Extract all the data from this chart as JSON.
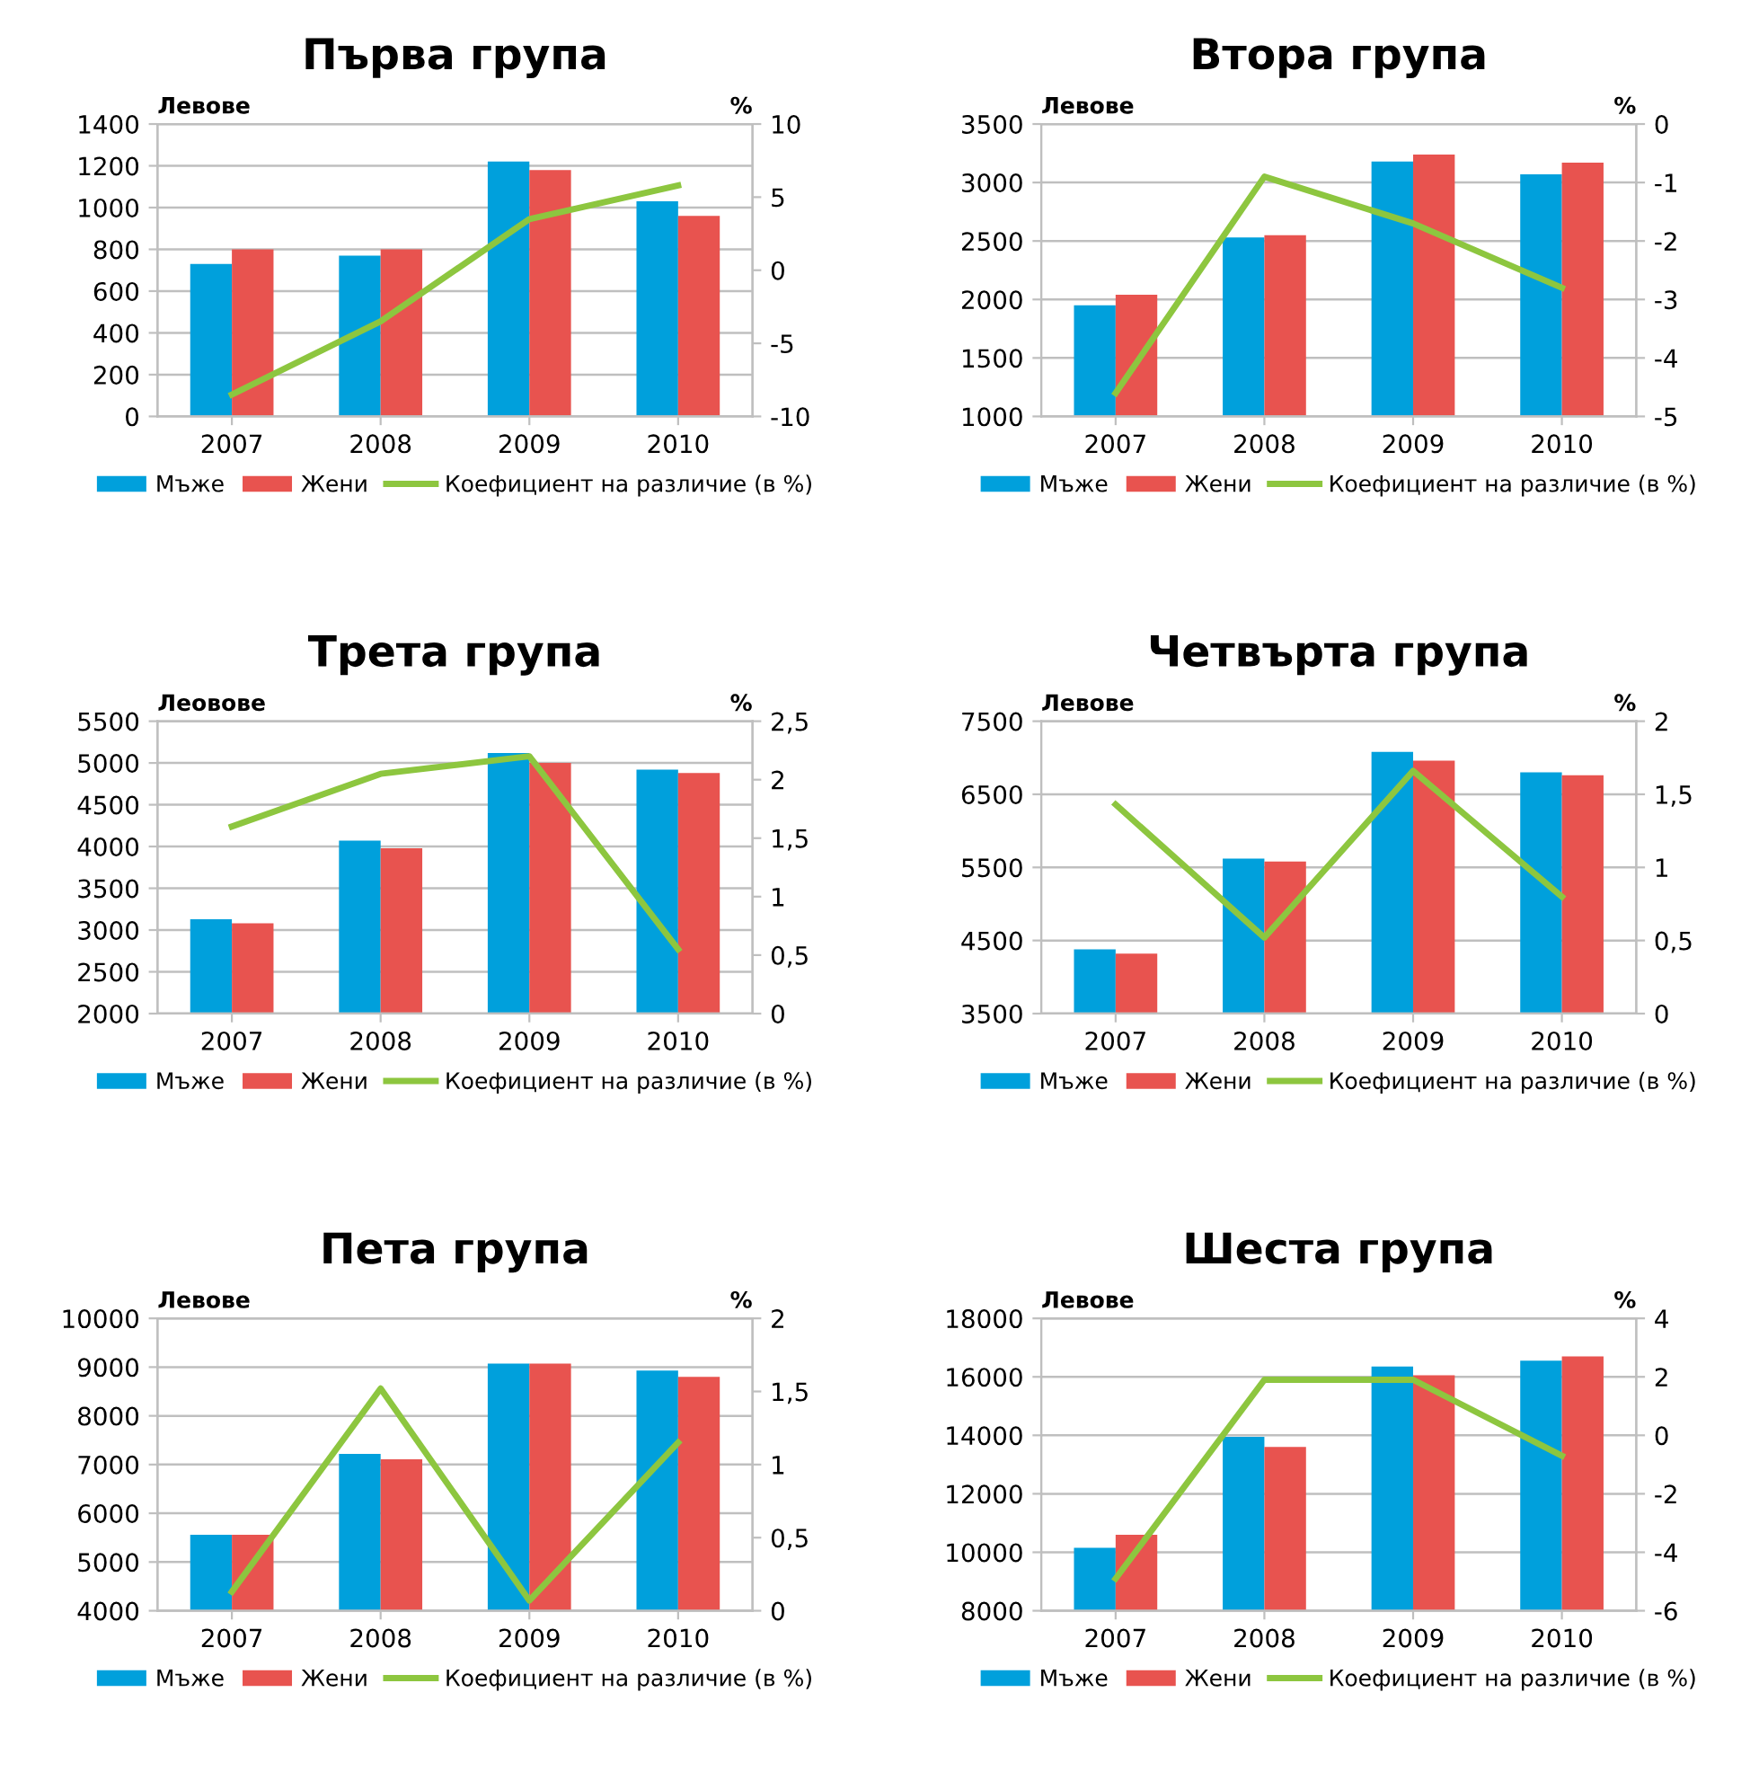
{
  "chart_data": [
    {
      "type": "bar",
      "title": "Първа група",
      "ylabel": "Левове",
      "y2label": "%",
      "categories": [
        "2007",
        "2008",
        "2009",
        "2010"
      ],
      "series": [
        {
          "name": "Мъже",
          "color": "#00a0dc",
          "values": [
            730,
            770,
            1220,
            1030
          ]
        },
        {
          "name": "Жени",
          "color": "#e8534f",
          "values": [
            800,
            800,
            1180,
            960
          ]
        },
        {
          "name": "Коефициент на различие (в %)",
          "type": "line",
          "axis": "y2",
          "color": "#8dc63f",
          "values": [
            -8.5,
            -3.5,
            3.5,
            5.8
          ]
        }
      ],
      "ylim": [
        0,
        1400
      ],
      "yticks": [
        0,
        200,
        400,
        600,
        800,
        1000,
        1200,
        1400
      ],
      "y2lim": [
        -10,
        10
      ],
      "y2ticks": [
        -10,
        -5,
        0,
        5,
        10
      ],
      "grid": "y",
      "legend": "bottom",
      "marker": "none",
      "line_style": "solid"
    },
    {
      "type": "bar",
      "title": "Втора група",
      "ylabel": "Левове",
      "y2label": "%",
      "categories": [
        "2007",
        "2008",
        "2009",
        "2010"
      ],
      "series": [
        {
          "name": "Мъже",
          "color": "#00a0dc",
          "values": [
            1950,
            2530,
            3180,
            3070
          ]
        },
        {
          "name": "Жени",
          "color": "#e8534f",
          "values": [
            2040,
            2550,
            3240,
            3170
          ]
        },
        {
          "name": "Коефициент на различие (в %)",
          "type": "line",
          "axis": "y2",
          "color": "#8dc63f",
          "values": [
            -4.6,
            -0.9,
            -1.7,
            -2.8
          ]
        }
      ],
      "ylim": [
        1000,
        3500
      ],
      "yticks": [
        1000,
        1500,
        2000,
        2500,
        3000,
        3500
      ],
      "y2lim": [
        -5,
        0
      ],
      "y2ticks": [
        -5,
        -4,
        -3,
        -2,
        -1,
        0
      ],
      "grid": "y",
      "legend": "bottom",
      "marker": "none",
      "line_style": "solid"
    },
    {
      "type": "bar",
      "title": "Трета група",
      "ylabel": "Леовове",
      "y2label": "%",
      "categories": [
        "2007",
        "2008",
        "2009",
        "2010"
      ],
      "series": [
        {
          "name": "Мъже",
          "color": "#00a0dc",
          "values": [
            3130,
            4070,
            5120,
            4920
          ]
        },
        {
          "name": "Жени",
          "color": "#e8534f",
          "values": [
            3080,
            3980,
            5000,
            4880
          ]
        },
        {
          "name": "Коефициент на различие (в %)",
          "type": "line",
          "axis": "y2",
          "color": "#8dc63f",
          "values": [
            1.6,
            2.05,
            2.2,
            0.55
          ]
        }
      ],
      "ylim": [
        2000,
        5500
      ],
      "yticks": [
        2000,
        2500,
        3000,
        3500,
        4000,
        4500,
        5000,
        5500
      ],
      "y2lim": [
        0,
        2.5
      ],
      "y2ticks": [
        0,
        {
          "value": 0.5,
          "label": "0,5"
        },
        1,
        {
          "value": 1.5,
          "label": "1,5"
        },
        2,
        {
          "value": 2.5,
          "label": "2,5"
        }
      ],
      "grid": "y",
      "legend": "bottom",
      "marker": "none",
      "line_style": "solid"
    },
    {
      "type": "bar",
      "title": "Четвърта група",
      "ylabel": "Левове",
      "y2label": "%",
      "categories": [
        "2007",
        "2008",
        "2009",
        "2010"
      ],
      "series": [
        {
          "name": "Мъже",
          "color": "#00a0dc",
          "values": [
            4380,
            5620,
            7080,
            6800
          ]
        },
        {
          "name": "Жени",
          "color": "#e8534f",
          "values": [
            4320,
            5580,
            6960,
            6760
          ]
        },
        {
          "name": "Коефициент на различие (в %)",
          "type": "line",
          "axis": "y2",
          "color": "#8dc63f",
          "values": [
            1.43,
            0.52,
            1.66,
            0.8
          ]
        }
      ],
      "ylim": [
        3500,
        7500
      ],
      "yticks": [
        3500,
        4500,
        5500,
        6500,
        7500
      ],
      "y2lim": [
        0,
        2
      ],
      "y2ticks": [
        0,
        {
          "value": 0.5,
          "label": "0,5"
        },
        1,
        {
          "value": 1.5,
          "label": "1,5"
        },
        2
      ],
      "grid": "y",
      "legend": "bottom",
      "marker": "none",
      "line_style": "solid"
    },
    {
      "type": "bar",
      "title": "Пета група",
      "ylabel": "Левове",
      "y2label": "%",
      "categories": [
        "2007",
        "2008",
        "2009",
        "2010"
      ],
      "series": [
        {
          "name": "Мъже",
          "color": "#00a0dc",
          "values": [
            5560,
            7220,
            9070,
            8930
          ]
        },
        {
          "name": "Жени",
          "color": "#e8534f",
          "values": [
            5560,
            7110,
            9070,
            8800
          ]
        },
        {
          "name": "Коефициент на различие (в %)",
          "type": "line",
          "axis": "y2",
          "color": "#8dc63f",
          "values": [
            0.13,
            1.52,
            0.07,
            1.15
          ]
        }
      ],
      "ylim": [
        4000,
        10000
      ],
      "yticks": [
        4000,
        5000,
        6000,
        7000,
        8000,
        9000,
        10000
      ],
      "y2lim": [
        0,
        2
      ],
      "y2ticks": [
        0,
        {
          "value": 0.5,
          "label": "0,5"
        },
        1,
        {
          "value": 1.5,
          "label": "1,5"
        },
        2
      ],
      "grid": "y",
      "legend": "bottom",
      "marker": "none",
      "line_style": "solid"
    },
    {
      "type": "bar",
      "title": "Шеста група",
      "ylabel": "Левове",
      "y2label": "%",
      "categories": [
        "2007",
        "2008",
        "2009",
        "2010"
      ],
      "series": [
        {
          "name": "Мъже",
          "color": "#00a0dc",
          "values": [
            10150,
            13950,
            16350,
            16550
          ]
        },
        {
          "name": "Жени",
          "color": "#e8534f",
          "values": [
            10600,
            13600,
            16050,
            16700
          ]
        },
        {
          "name": "Коефициент на различие (в %)",
          "type": "line",
          "axis": "y2",
          "color": "#8dc63f",
          "values": [
            -4.9,
            1.9,
            1.9,
            -0.7
          ]
        }
      ],
      "ylim": [
        8000,
        18000
      ],
      "yticks": [
        8000,
        10000,
        12000,
        14000,
        16000,
        18000
      ],
      "y2lim": [
        -6,
        4
      ],
      "y2ticks": [
        -6,
        -4,
        -2,
        0,
        2,
        4
      ],
      "grid": "y",
      "legend": "bottom",
      "marker": "none",
      "line_style": "solid"
    }
  ]
}
